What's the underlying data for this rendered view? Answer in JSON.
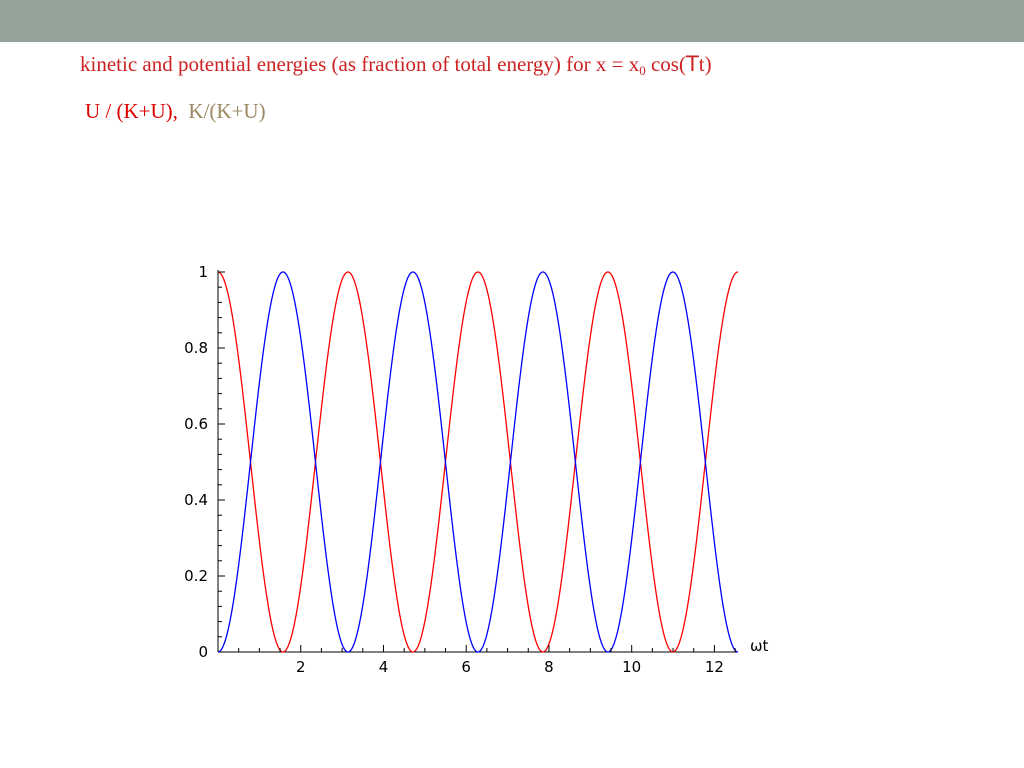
{
  "slide": {
    "band_color": "#95a39b",
    "title_color": "#cc2222",
    "title_before_sub": "kinetic and potential energies (as fraction of total energy) for x = x",
    "title_sub": "0",
    "title_after_sub": " cos(",
    "title_omega_glyph": "T",
    "title_end": "t)",
    "legend": {
      "u_text": "U / (K+U),",
      "u_color": "#dd0000",
      "gap": "  ",
      "k_text": "K/(K+U)",
      "k_color": "#9b8760"
    }
  },
  "chart_data": {
    "type": "line",
    "title": "",
    "xlabel": "ωt",
    "ylabel": "",
    "xlim": [
      0,
      12.57
    ],
    "ylim": [
      0,
      1
    ],
    "x_ticks": [
      2,
      4,
      6,
      8,
      10,
      12
    ],
    "x_tick_labels": [
      "2",
      "4",
      "6",
      "8",
      "10",
      "12"
    ],
    "y_ticks": [
      0,
      0.2,
      0.4,
      0.6,
      0.8,
      1
    ],
    "y_tick_labels": [
      "0",
      "0.2",
      "0.4",
      "0.6",
      "0.8",
      "1"
    ],
    "grid": false,
    "series": [
      {
        "color": "#ff0000",
        "function": "cos^2",
        "x": [
          0,
          0.785,
          1.571,
          2.356,
          3.142,
          3.927,
          4.712,
          5.498,
          6.283,
          7.069,
          7.854,
          8.639,
          9.425,
          10.21,
          10.996,
          11.781,
          12.566
        ],
        "values": [
          1,
          0.5,
          0,
          0.5,
          1,
          0.5,
          0,
          0.5,
          1,
          0.5,
          0,
          0.5,
          1,
          0.5,
          0,
          0.5,
          1
        ]
      },
      {
        "color": "#0000ff",
        "function": "sin^2",
        "x": [
          0,
          0.785,
          1.571,
          2.356,
          3.142,
          3.927,
          4.712,
          5.498,
          6.283,
          7.069,
          7.854,
          8.639,
          9.425,
          10.21,
          10.996,
          11.781,
          12.566
        ],
        "values": [
          0,
          0.5,
          1,
          0.5,
          0,
          0.5,
          1,
          0.5,
          0,
          0.5,
          1,
          0.5,
          0,
          0.5,
          1,
          0.5,
          0
        ]
      }
    ]
  }
}
